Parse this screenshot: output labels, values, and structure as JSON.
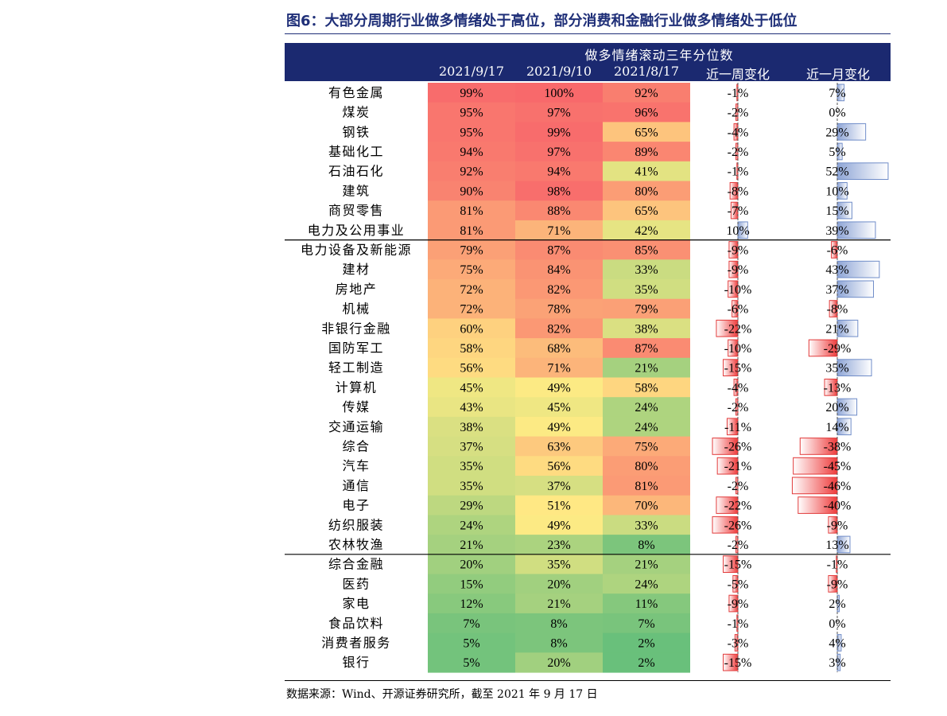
{
  "title": "图6：大部分周期行业做多情绪处于高位，部分消费和金融行业做多情绪处于低位",
  "source": "数据来源：Wind、开源证券研究所，截至 2021 年 9 月 17 日",
  "chart_data": {
    "type": "table",
    "header_title": "做多情绪滚动三年分位数",
    "columns": [
      "2021/9/17",
      "2021/9/10",
      "2021/8/17",
      "近一周变化",
      "近一月变化"
    ],
    "groups_end_after": [
      "电力及公用事业",
      "农林牧渔"
    ],
    "rows": [
      {
        "name": "有色金属",
        "v917": 99,
        "v910": 100,
        "v817": 92,
        "week": -1,
        "month": 7
      },
      {
        "name": "煤炭",
        "v917": 95,
        "v910": 97,
        "v817": 96,
        "week": -2,
        "month": 0
      },
      {
        "name": "钢铁",
        "v917": 95,
        "v910": 99,
        "v817": 65,
        "week": -4,
        "month": 29
      },
      {
        "name": "基础化工",
        "v917": 94,
        "v910": 97,
        "v817": 89,
        "week": -2,
        "month": 5
      },
      {
        "name": "石油石化",
        "v917": 92,
        "v910": 94,
        "v817": 41,
        "week": -1,
        "month": 52
      },
      {
        "name": "建筑",
        "v917": 90,
        "v910": 98,
        "v817": 80,
        "week": -8,
        "month": 10
      },
      {
        "name": "商贸零售",
        "v917": 81,
        "v910": 88,
        "v817": 65,
        "week": -7,
        "month": 15
      },
      {
        "name": "电力及公用事业",
        "v917": 81,
        "v910": 71,
        "v817": 42,
        "week": 10,
        "month": 39
      },
      {
        "name": "电力设备及新能源",
        "v917": 79,
        "v910": 87,
        "v817": 85,
        "week": -9,
        "month": -6
      },
      {
        "name": "建材",
        "v917": 75,
        "v910": 84,
        "v817": 33,
        "week": -9,
        "month": 43
      },
      {
        "name": "房地产",
        "v917": 72,
        "v910": 82,
        "v817": 35,
        "week": -10,
        "month": 37
      },
      {
        "name": "机械",
        "v917": 72,
        "v910": 78,
        "v817": 79,
        "week": -6,
        "month": -8
      },
      {
        "name": "非银行金融",
        "v917": 60,
        "v910": 82,
        "v817": 38,
        "week": -22,
        "month": 21
      },
      {
        "name": "国防军工",
        "v917": 58,
        "v910": 68,
        "v817": 87,
        "week": -10,
        "month": -29
      },
      {
        "name": "轻工制造",
        "v917": 56,
        "v910": 71,
        "v817": 21,
        "week": -15,
        "month": 35
      },
      {
        "name": "计算机",
        "v917": 45,
        "v910": 49,
        "v817": 58,
        "week": -4,
        "month": -13
      },
      {
        "name": "传媒",
        "v917": 43,
        "v910": 45,
        "v817": 24,
        "week": -2,
        "month": 20
      },
      {
        "name": "交通运输",
        "v917": 38,
        "v910": 49,
        "v817": 24,
        "week": -11,
        "month": 14
      },
      {
        "name": "综合",
        "v917": 37,
        "v910": 63,
        "v817": 75,
        "week": -26,
        "month": -38
      },
      {
        "name": "汽车",
        "v917": 35,
        "v910": 56,
        "v817": 80,
        "week": -21,
        "month": -45
      },
      {
        "name": "通信",
        "v917": 35,
        "v910": 37,
        "v817": 81,
        "week": -2,
        "month": -46
      },
      {
        "name": "电子",
        "v917": 29,
        "v910": 51,
        "v817": 70,
        "week": -22,
        "month": -40
      },
      {
        "name": "纺织服装",
        "v917": 24,
        "v910": 49,
        "v817": 33,
        "week": -26,
        "month": -9
      },
      {
        "name": "农林牧渔",
        "v917": 21,
        "v910": 23,
        "v817": 8,
        "week": -2,
        "month": 13
      },
      {
        "name": "综合金融",
        "v917": 20,
        "v910": 35,
        "v817": 21,
        "week": -15,
        "month": -1
      },
      {
        "name": "医药",
        "v917": 15,
        "v910": 20,
        "v817": 24,
        "week": -5,
        "month": -9
      },
      {
        "name": "家电",
        "v917": 12,
        "v910": 21,
        "v817": 11,
        "week": -9,
        "month": 2
      },
      {
        "name": "食品饮料",
        "v917": 7,
        "v910": 8,
        "v817": 7,
        "week": -1,
        "month": 0
      },
      {
        "name": "消费者服务",
        "v917": 5,
        "v910": 8,
        "v817": 2,
        "week": -3,
        "month": 4
      },
      {
        "name": "银行",
        "v917": 5,
        "v910": 20,
        "v817": 2,
        "week": -15,
        "month": 3
      }
    ]
  }
}
